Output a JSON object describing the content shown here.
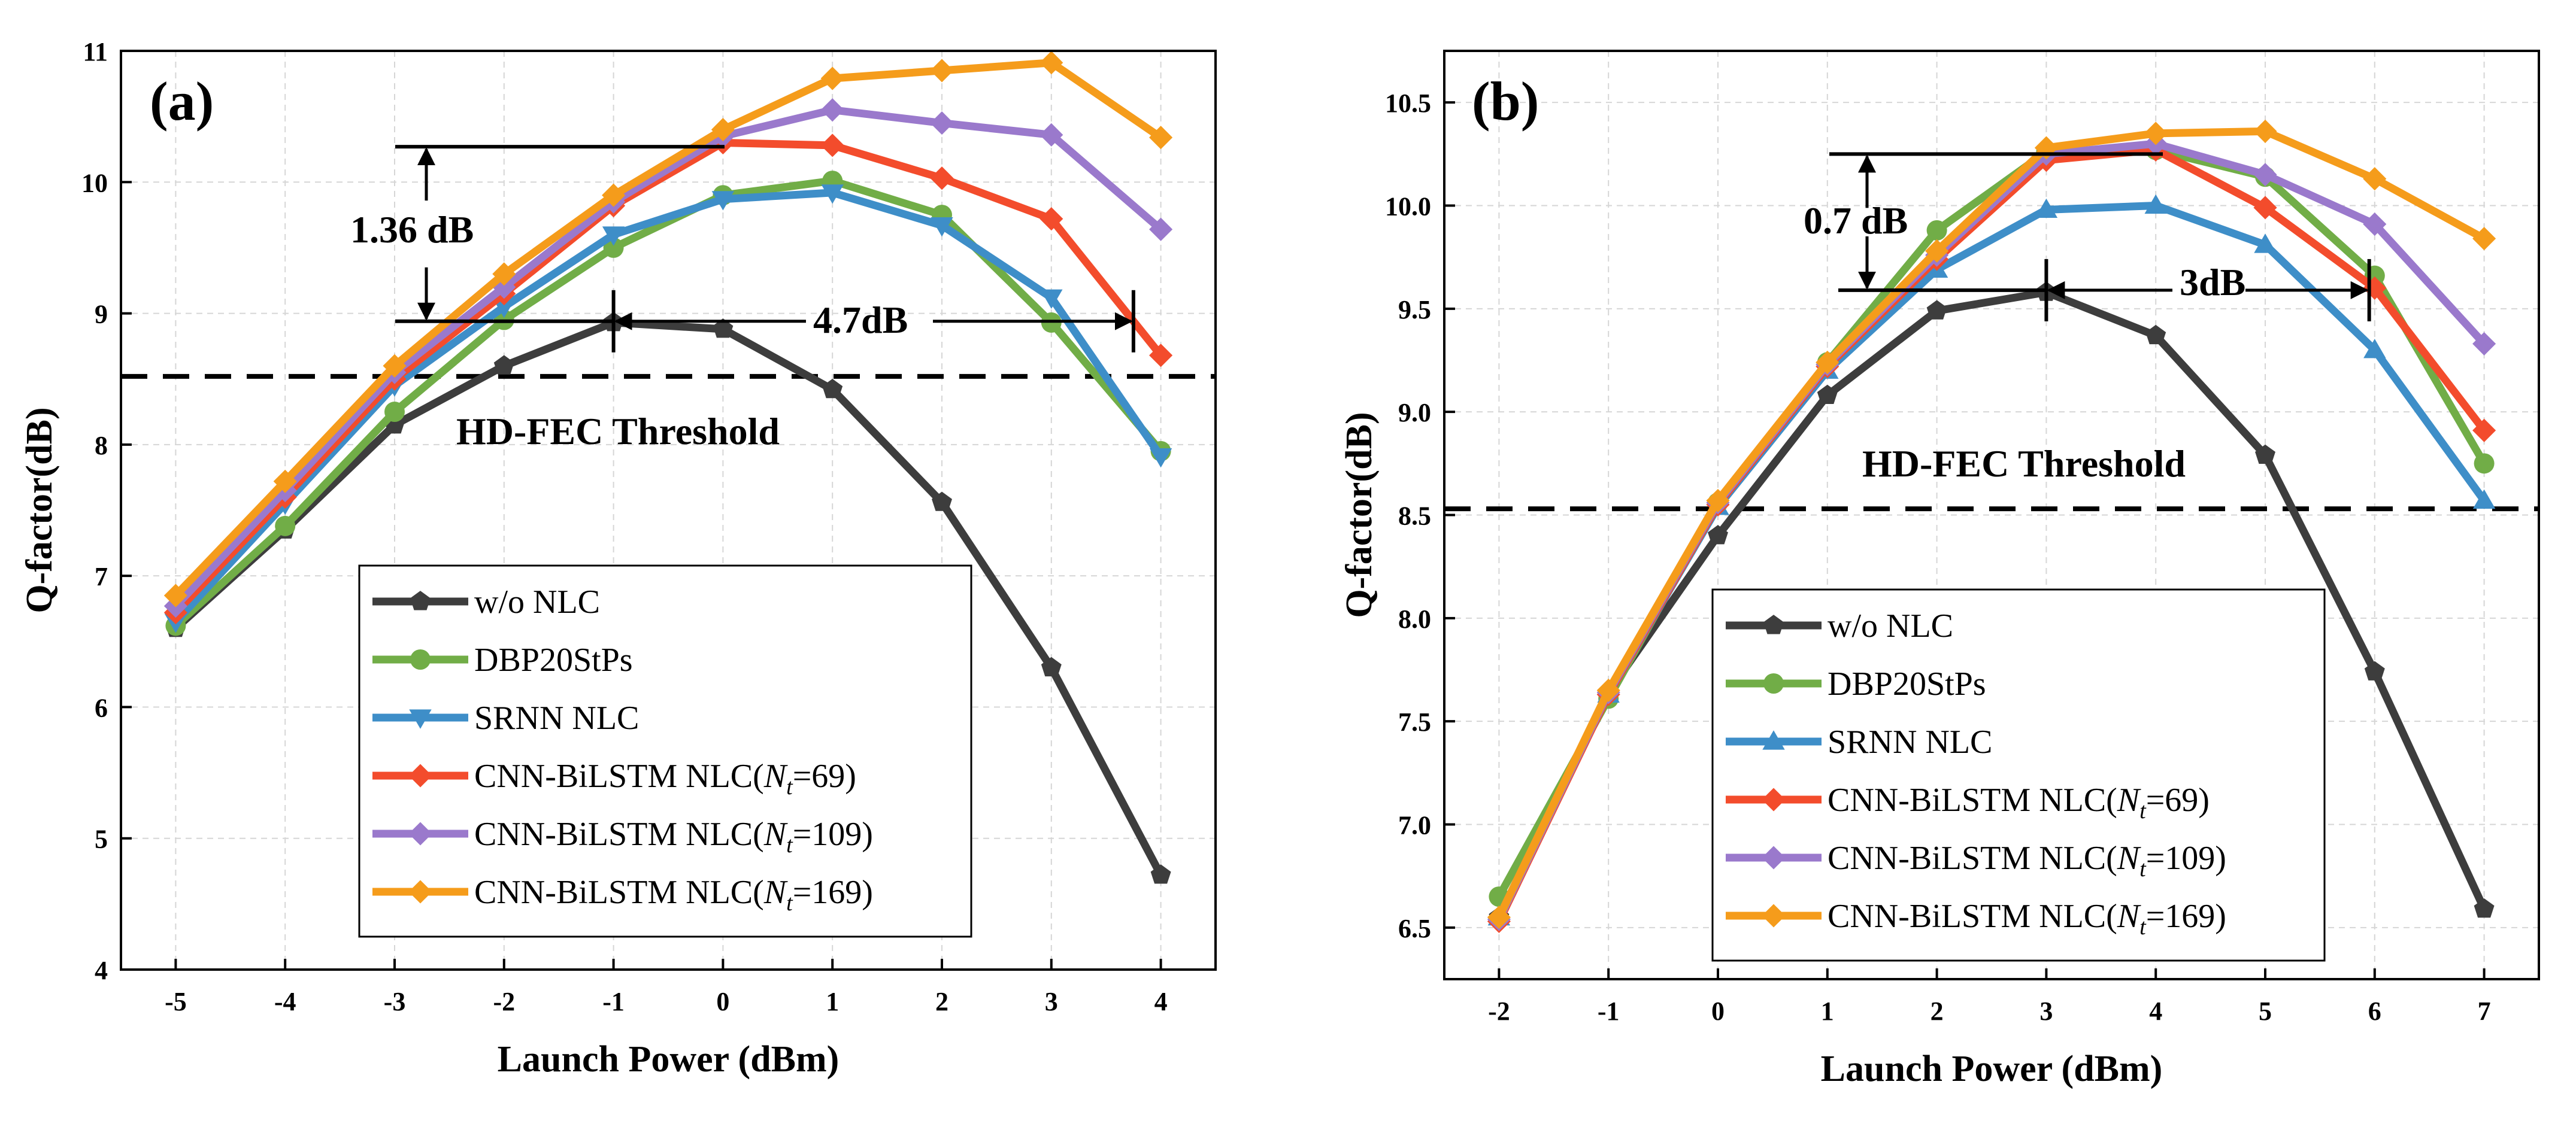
{
  "chart_data": [
    {
      "type": "line",
      "panel_label": "(a)",
      "xlabel": "Launch Power (dBm)",
      "ylabel": "Q-factor(dB)",
      "xlim": [
        -5.5,
        4.5
      ],
      "ylim": [
        4,
        11
      ],
      "x_ticks": [
        -5,
        -4,
        -3,
        -2,
        -1,
        0,
        1,
        2,
        3,
        4
      ],
      "y_ticks": [
        4,
        5,
        6,
        7,
        8,
        9,
        10,
        11
      ],
      "x_tick_labels": [
        "-5",
        "-4",
        "-3",
        "-2",
        "-1",
        "0",
        "1",
        "2",
        "3",
        "4"
      ],
      "y_tick_labels": [
        "4",
        "5",
        "6",
        "7",
        "8",
        "9",
        "10",
        "11"
      ],
      "x": [
        -5,
        -4,
        -3,
        -2,
        -1,
        0,
        1,
        2,
        3,
        4
      ],
      "grid": true,
      "threshold": {
        "value": 8.52,
        "label": "HD-FEC Threshold"
      },
      "annotations": {
        "vertical_gap": "1.36 dB",
        "horizontal_gap": "4.7dB"
      },
      "series": [
        {
          "name": "w/o NLC",
          "color": "#3d3d3d",
          "marker": "pentagon",
          "values": [
            6.6,
            7.35,
            8.15,
            8.6,
            8.93,
            8.88,
            8.42,
            7.56,
            6.3,
            4.72
          ]
        },
        {
          "name": "DBP20StPs",
          "color": "#71ad47",
          "marker": "circle",
          "values": [
            6.62,
            7.38,
            8.25,
            8.95,
            9.5,
            9.9,
            10.01,
            9.75,
            8.93,
            7.95
          ]
        },
        {
          "name": "SRNN NLC",
          "color": "#3e8ec8",
          "marker": "triangle-down",
          "values": [
            6.65,
            7.55,
            8.45,
            9.05,
            9.6,
            9.87,
            9.92,
            9.67,
            9.12,
            7.91
          ]
        },
        {
          "name": "CNN-BiLSTM NLC(",
          "subscript_symbol": "N",
          "subscript": "t",
          "suffix": "=69)",
          "color": "#f34c2c",
          "marker": "diamond",
          "values": [
            6.72,
            7.6,
            8.5,
            9.15,
            9.82,
            10.3,
            10.28,
            10.03,
            9.72,
            8.68
          ]
        },
        {
          "name": "CNN-BiLSTM NLC(",
          "subscript_symbol": "N",
          "subscript": "t",
          "suffix": "=109)",
          "color": "#9a79cc",
          "marker": "diamond",
          "values": [
            6.77,
            7.65,
            8.55,
            9.2,
            9.85,
            10.35,
            10.55,
            10.45,
            10.36,
            9.64
          ]
        },
        {
          "name": "CNN-BiLSTM NLC(",
          "subscript_symbol": "N",
          "subscript": "t",
          "suffix": "=169)",
          "color": "#f59c1b",
          "marker": "diamond",
          "values": [
            6.85,
            7.72,
            8.6,
            9.3,
            9.9,
            10.4,
            10.79,
            10.85,
            10.91,
            10.34
          ]
        }
      ]
    },
    {
      "type": "line",
      "panel_label": "(b)",
      "xlabel": "Launch Power (dBm)",
      "ylabel": "Q-factor(dB)",
      "xlim": [
        -2.5,
        7.5
      ],
      "ylim": [
        6.25,
        10.75
      ],
      "x_ticks": [
        -2,
        -1,
        0,
        1,
        2,
        3,
        4,
        5,
        6,
        7
      ],
      "y_ticks": [
        6.5,
        7.0,
        7.5,
        8.0,
        8.5,
        9.0,
        9.5,
        10.0,
        10.5
      ],
      "x_tick_labels": [
        "-2",
        "-1",
        "0",
        "1",
        "2",
        "3",
        "4",
        "5",
        "6",
        "7"
      ],
      "y_tick_labels": [
        "6.5",
        "7.0",
        "7.5",
        "8.0",
        "8.5",
        "9.0",
        "9.5",
        "10.0",
        "10.5"
      ],
      "x": [
        -2,
        -1,
        0,
        1,
        2,
        3,
        4,
        5,
        6,
        7
      ],
      "grid": true,
      "threshold": {
        "value": 8.53,
        "label": "HD-FEC Threshold"
      },
      "annotations": {
        "vertical_gap": "0.7 dB",
        "horizontal_gap": "3dB"
      },
      "series": [
        {
          "name": "w/o NLC",
          "color": "#3d3d3d",
          "marker": "pentagon",
          "values": [
            6.55,
            7.64,
            8.4,
            9.08,
            9.49,
            9.58,
            9.37,
            8.79,
            7.74,
            6.59
          ]
        },
        {
          "name": "DBP20StPs",
          "color": "#71ad47",
          "marker": "circle",
          "values": [
            6.65,
            7.61,
            8.56,
            9.24,
            9.88,
            10.26,
            10.27,
            10.14,
            9.66,
            8.75
          ]
        },
        {
          "name": "SRNN NLC",
          "color": "#3e8ec8",
          "marker": "triangle-up",
          "values": [
            6.55,
            7.63,
            8.54,
            9.2,
            9.69,
            9.98,
            10.0,
            9.81,
            9.3,
            8.57
          ]
        },
        {
          "name": "CNN-BiLSTM NLC(",
          "subscript_symbol": "N",
          "subscript": "t",
          "suffix": "=69)",
          "color": "#f34c2c",
          "marker": "diamond",
          "values": [
            6.53,
            7.63,
            8.55,
            9.22,
            9.74,
            10.22,
            10.27,
            9.99,
            9.6,
            8.91
          ]
        },
        {
          "name": "CNN-BiLSTM NLC(",
          "subscript_symbol": "N",
          "subscript": "t",
          "suffix": "=109)",
          "color": "#9a79cc",
          "marker": "diamond",
          "values": [
            6.54,
            7.64,
            8.56,
            9.23,
            9.76,
            10.25,
            10.3,
            10.15,
            9.91,
            9.33
          ]
        },
        {
          "name": "CNN-BiLSTM NLC(",
          "subscript_symbol": "N",
          "subscript": "t",
          "suffix": "=169)",
          "color": "#f59c1b",
          "marker": "diamond",
          "values": [
            6.55,
            7.65,
            8.57,
            9.24,
            9.78,
            10.28,
            10.35,
            10.36,
            10.13,
            9.84
          ]
        }
      ]
    }
  ]
}
